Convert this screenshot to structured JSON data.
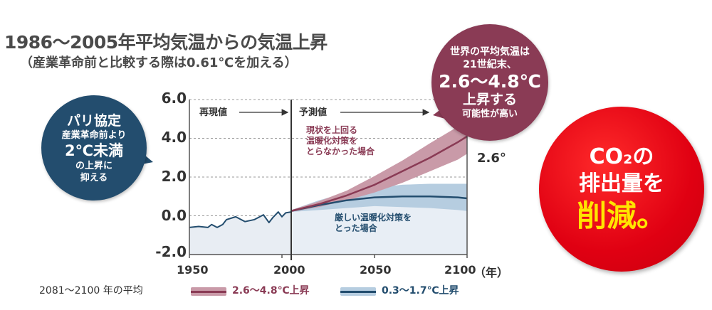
{
  "header": {
    "title": "1986～2005年平均気温からの気温上昇",
    "subtitle": "（産業革命前と比較する際は0.61℃を加える）"
  },
  "bubbles": {
    "paris": [
      "パリ協定",
      "産業革命前より",
      "2℃未満",
      "の上昇に",
      "抑える"
    ],
    "world": [
      "世界の平均気温は",
      "21世紀末、",
      "2.6〜4.8℃",
      "上昇する",
      "可能性が高い"
    ],
    "co2": [
      "CO₂の",
      "排出量を",
      "削減。"
    ]
  },
  "colors": {
    "high": "#8a3b55",
    "high_band": "#c99aa8",
    "low": "#234d6e",
    "low_band": "#b6cde0",
    "observed": "#234d6e",
    "observed_fill": "#e8edf3",
    "accent_red": "#e00012",
    "accent_yellow": "#ffe600"
  },
  "chart_data": {
    "type": "line",
    "xlabel": "（年）",
    "ylabel": "",
    "xlim": [
      1950,
      2100
    ],
    "ylim": [
      -2.0,
      6.0
    ],
    "xticks": [
      1950,
      2000,
      2050,
      2100
    ],
    "xtick_labels": [
      "1950",
      "2000",
      "2050",
      "2100"
    ],
    "yticks": [
      6.0,
      4.0,
      2.0,
      0.0,
      -2.0
    ],
    "ytick_labels": [
      "6.0",
      "4.0",
      "2.0",
      "0.0",
      "-2.0"
    ],
    "divider_year": 2005,
    "labels": {
      "reproduction": "再現値",
      "projection": "予測値",
      "high_scenario": [
        "現状を上回る",
        "温暖化対策を",
        "とらなかった場合"
      ],
      "low_scenario": [
        "厳しい温暖化対策を",
        "とった場合"
      ],
      "end_value": "2.6°"
    },
    "series": [
      {
        "name": "再現値",
        "x": [
          1950,
          1955,
          1960,
          1962,
          1965,
          1968,
          1970,
          1975,
          1980,
          1985,
          1990,
          1993,
          1995,
          1998,
          2000,
          2002,
          2005
        ],
        "y": [
          -0.6,
          -0.55,
          -0.6,
          -0.45,
          -0.6,
          -0.45,
          -0.2,
          -0.05,
          -0.3,
          -0.2,
          0.05,
          -0.35,
          -0.1,
          0.2,
          -0.05,
          0.15,
          0.2
        ]
      },
      {
        "name": "2.6〜4.8℃上昇",
        "x": [
          2005,
          2020,
          2035,
          2050,
          2065,
          2080,
          2095,
          2100
        ],
        "y": [
          0.25,
          0.6,
          1.05,
          1.6,
          2.3,
          3.0,
          3.8,
          4.1
        ],
        "lower": [
          0.2,
          0.45,
          0.8,
          1.2,
          1.7,
          2.3,
          2.9,
          3.2
        ],
        "upper": [
          0.3,
          0.75,
          1.3,
          2.05,
          2.85,
          3.75,
          4.6,
          4.9
        ]
      },
      {
        "name": "0.3〜1.7℃上昇",
        "x": [
          2005,
          2020,
          2035,
          2050,
          2065,
          2080,
          2095,
          2100
        ],
        "y": [
          0.25,
          0.55,
          0.8,
          0.95,
          1.0,
          1.0,
          0.95,
          0.9
        ],
        "lower": [
          0.2,
          0.3,
          0.4,
          0.5,
          0.45,
          0.4,
          0.3,
          0.25
        ],
        "upper": [
          0.3,
          0.8,
          1.2,
          1.45,
          1.6,
          1.65,
          1.65,
          1.65
        ]
      }
    ],
    "legend": {
      "title": "2081〜2100 年の平均",
      "items": [
        "2.6〜4.8℃上昇",
        "0.3〜1.7℃上昇"
      ]
    }
  }
}
